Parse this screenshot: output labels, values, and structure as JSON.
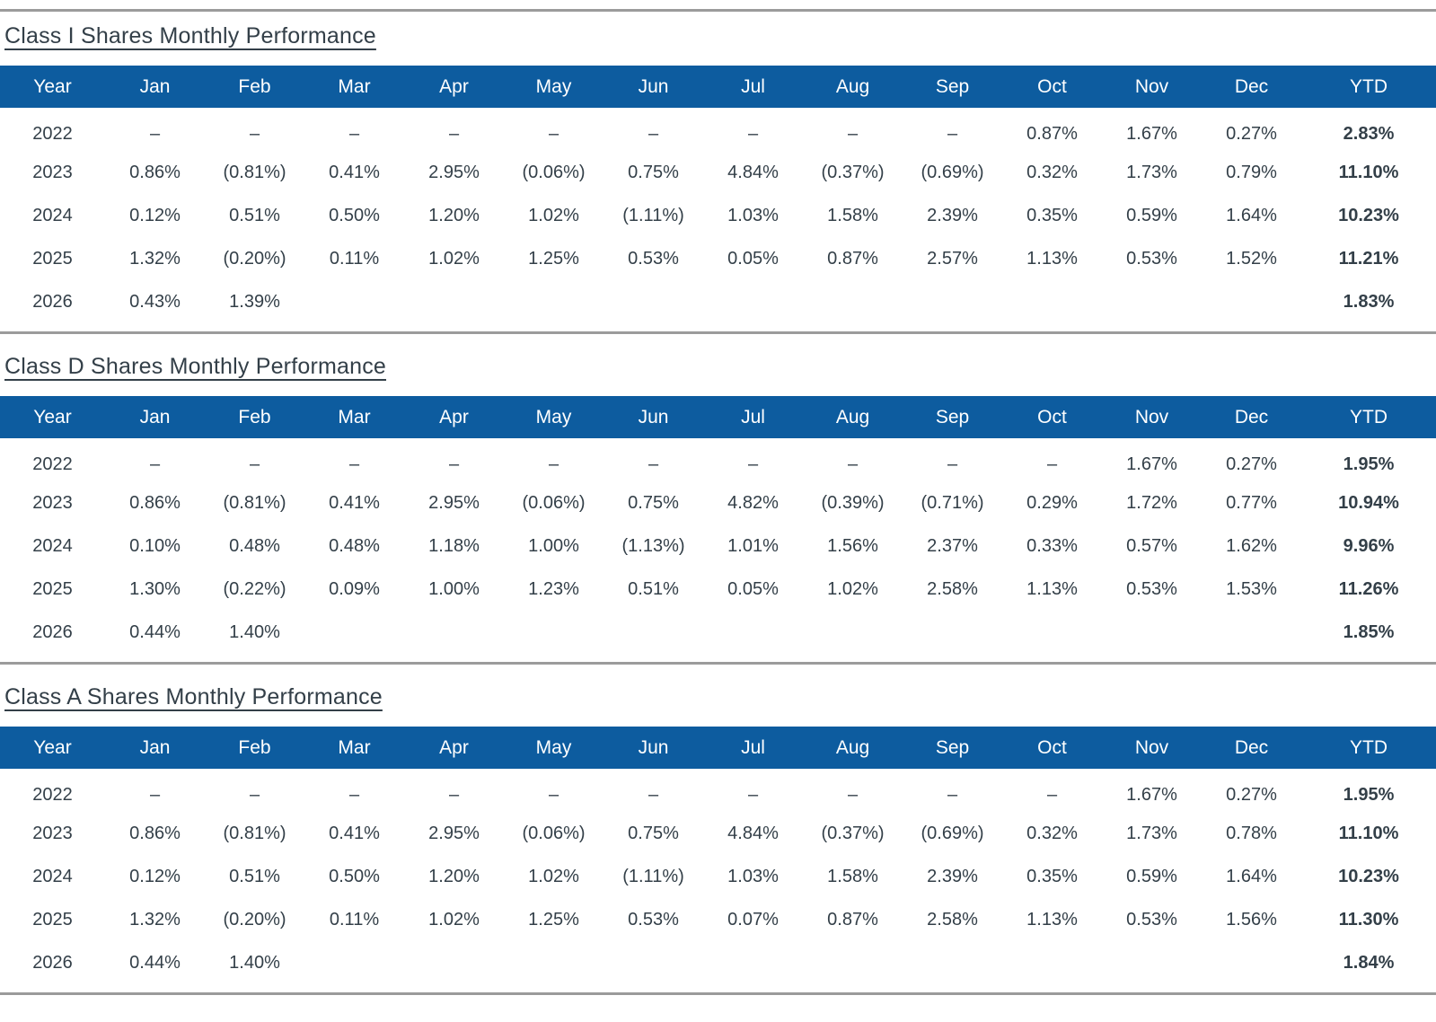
{
  "columns": [
    "Year",
    "Jan",
    "Feb",
    "Mar",
    "Apr",
    "May",
    "Jun",
    "Jul",
    "Aug",
    "Sep",
    "Oct",
    "Nov",
    "Dec",
    "YTD"
  ],
  "tables": [
    {
      "title": "Class I Shares Monthly Performance",
      "rows": [
        {
          "year": "2022",
          "months": [
            "–",
            "–",
            "–",
            "–",
            "–",
            "–",
            "–",
            "–",
            "–",
            "0.87%",
            "1.67%",
            "0.27%"
          ],
          "ytd": "2.83%"
        },
        {
          "year": "2023",
          "months": [
            "0.86%",
            "(0.81%)",
            "0.41%",
            "2.95%",
            "(0.06%)",
            "0.75%",
            "4.84%",
            "(0.37%)",
            "(0.69%)",
            "0.32%",
            "1.73%",
            "0.79%"
          ],
          "ytd": "11.10%"
        },
        {
          "year": "2024",
          "months": [
            "0.12%",
            "0.51%",
            "0.50%",
            "1.20%",
            "1.02%",
            "(1.11%)",
            "1.03%",
            "1.58%",
            "2.39%",
            "0.35%",
            "0.59%",
            "1.64%"
          ],
          "ytd": "10.23%"
        },
        {
          "year": "2025",
          "months": [
            "1.32%",
            "(0.20%)",
            "0.11%",
            "1.02%",
            "1.25%",
            "0.53%",
            "0.05%",
            "0.87%",
            "2.57%",
            "1.13%",
            "0.53%",
            "1.52%"
          ],
          "ytd": "11.21%"
        },
        {
          "year": "2026",
          "months": [
            "0.43%",
            "1.39%",
            "",
            "",
            "",
            "",
            "",
            "",
            "",
            "",
            "",
            ""
          ],
          "ytd": "1.83%"
        }
      ]
    },
    {
      "title": "Class D Shares Monthly Performance",
      "rows": [
        {
          "year": "2022",
          "months": [
            "–",
            "–",
            "–",
            "–",
            "–",
            "–",
            "–",
            "–",
            "–",
            "–",
            "1.67%",
            "0.27%"
          ],
          "ytd": "1.95%"
        },
        {
          "year": "2023",
          "months": [
            "0.86%",
            "(0.81%)",
            "0.41%",
            "2.95%",
            "(0.06%)",
            "0.75%",
            "4.82%",
            "(0.39%)",
            "(0.71%)",
            "0.29%",
            "1.72%",
            "0.77%"
          ],
          "ytd": "10.94%"
        },
        {
          "year": "2024",
          "months": [
            "0.10%",
            "0.48%",
            "0.48%",
            "1.18%",
            "1.00%",
            "(1.13%)",
            "1.01%",
            "1.56%",
            "2.37%",
            "0.33%",
            "0.57%",
            "1.62%"
          ],
          "ytd": "9.96%"
        },
        {
          "year": "2025",
          "months": [
            "1.30%",
            "(0.22%)",
            "0.09%",
            "1.00%",
            "1.23%",
            "0.51%",
            "0.05%",
            "1.02%",
            "2.58%",
            "1.13%",
            "0.53%",
            "1.53%"
          ],
          "ytd": "11.26%"
        },
        {
          "year": "2026",
          "months": [
            "0.44%",
            "1.40%",
            "",
            "",
            "",
            "",
            "",
            "",
            "",
            "",
            "",
            ""
          ],
          "ytd": "1.85%"
        }
      ]
    },
    {
      "title": "Class A Shares Monthly Performance",
      "rows": [
        {
          "year": "2022",
          "months": [
            "–",
            "–",
            "–",
            "–",
            "–",
            "–",
            "–",
            "–",
            "–",
            "–",
            "1.67%",
            "0.27%"
          ],
          "ytd": "1.95%"
        },
        {
          "year": "2023",
          "months": [
            "0.86%",
            "(0.81%)",
            "0.41%",
            "2.95%",
            "(0.06%)",
            "0.75%",
            "4.84%",
            "(0.37%)",
            "(0.69%)",
            "0.32%",
            "1.73%",
            "0.78%"
          ],
          "ytd": "11.10%"
        },
        {
          "year": "2024",
          "months": [
            "0.12%",
            "0.51%",
            "0.50%",
            "1.20%",
            "1.02%",
            "(1.11%)",
            "1.03%",
            "1.58%",
            "2.39%",
            "0.35%",
            "0.59%",
            "1.64%"
          ],
          "ytd": "10.23%"
        },
        {
          "year": "2025",
          "months": [
            "1.32%",
            "(0.20%)",
            "0.11%",
            "1.02%",
            "1.25%",
            "0.53%",
            "0.07%",
            "0.87%",
            "2.58%",
            "1.13%",
            "0.53%",
            "1.56%"
          ],
          "ytd": "11.30%"
        },
        {
          "year": "2026",
          "months": [
            "0.44%",
            "1.40%",
            "",
            "",
            "",
            "",
            "",
            "",
            "",
            "",
            "",
            ""
          ],
          "ytd": "1.84%"
        }
      ]
    }
  ],
  "colors": {
    "header_bg": "#0d5c9f",
    "header_text": "#ffffff",
    "body_text": "#333f48",
    "divider": "#9b9b9b"
  }
}
